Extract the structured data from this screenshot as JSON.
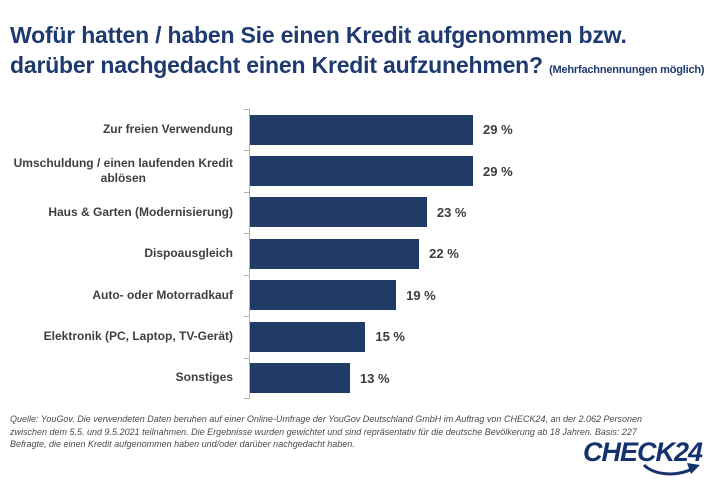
{
  "header": {
    "title": "Wofür hatten / haben Sie einen Kredit aufgenommen bzw. darüber nachgedacht einen Kredit aufzunehmen?",
    "note": "(Mehrfachnennungen möglich)"
  },
  "chart_data": {
    "type": "bar",
    "orientation": "horizontal",
    "title": "Wofür hatten / haben Sie einen Kredit aufgenommen bzw. darüber nachgedacht einen Kredit aufzunehmen? (Mehrfachnennungen möglich)",
    "categories": [
      "Zur freien Verwendung",
      "Umschuldung / einen laufenden Kredit\nablösen",
      "Haus & Garten (Modernisierung)",
      "Dispoausgleich",
      "Auto- oder Motorradkauf",
      "Elektronik (PC, Laptop, TV-Gerät)",
      "Sonstiges"
    ],
    "values": [
      29,
      29,
      23,
      22,
      19,
      15,
      13
    ],
    "value_labels": [
      "29 %",
      "29 %",
      "23 %",
      "22 %",
      "19 %",
      "15 %",
      "13 %"
    ],
    "unit": "%",
    "xlim": [
      0,
      31
    ],
    "bar_color": "#203b66",
    "grid": false,
    "legend": false
  },
  "footer": {
    "source": "Quelle: YouGov. Die verwendeten Daten beruhen auf einer Online-Umfrage der YouGov Deutschland GmbH im Auftrag von CHECK24, an der 2.062 Personen zwischen dem 5.5. und 9.5.2021 teilnahmen. Die Ergebnisse wurden gewichtet und sind repräsentativ für die deutsche Bevölkerung ab 18 Jahren. Basis: 227 Befragte, die einen Kredit aufgenommen haben und/oder darüber nachgedacht haben."
  },
  "logo": {
    "text": "CHECK24"
  },
  "colors": {
    "navy": "#1e3a6e",
    "bar": "#203b66",
    "label_gray": "#3f3f3f",
    "axis_gray": "#b3b3b3",
    "footer_gray": "#4a4a4a"
  }
}
